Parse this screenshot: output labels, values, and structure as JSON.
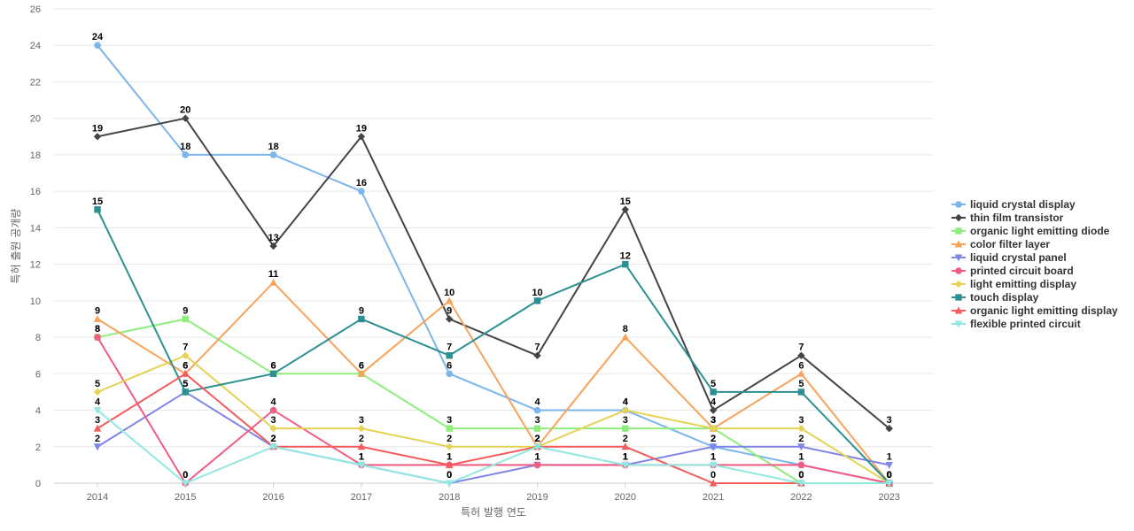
{
  "chart_data": {
    "type": "line",
    "x": [
      "2014",
      "2015",
      "2016",
      "2017",
      "2018",
      "2019",
      "2020",
      "2021",
      "2022",
      "2023"
    ],
    "xlabel": "특허 발행 연도",
    "ylabel": "특허 출원 공개량",
    "ylim": [
      0,
      26
    ],
    "yticks": [
      0,
      2,
      4,
      6,
      8,
      10,
      12,
      14,
      16,
      18,
      20,
      22,
      24,
      26
    ],
    "grid": true,
    "legend_position": "right",
    "data_labels": true,
    "series": [
      {
        "name": "liquid crystal display",
        "color": "#7cb5ec",
        "marker": "circle",
        "values": [
          24,
          18,
          18,
          16,
          6,
          4,
          4,
          2,
          1,
          0
        ]
      },
      {
        "name": "thin film transistor",
        "color": "#434348",
        "marker": "diamond",
        "values": [
          19,
          20,
          13,
          19,
          9,
          7,
          15,
          4,
          7,
          3
        ]
      },
      {
        "name": "organic light emitting diode",
        "color": "#90ed7d",
        "marker": "square",
        "values": [
          8,
          9,
          6,
          6,
          3,
          3,
          3,
          3,
          0,
          0
        ]
      },
      {
        "name": "color filter layer",
        "color": "#f7a35c",
        "marker": "triangle",
        "values": [
          9,
          6,
          11,
          6,
          10,
          2,
          8,
          3,
          6,
          0
        ]
      },
      {
        "name": "liquid crystal panel",
        "color": "#8085e9",
        "marker": "triangle-down",
        "values": [
          2,
          5,
          2,
          1,
          0,
          1,
          1,
          2,
          2,
          1
        ]
      },
      {
        "name": "printed circuit board",
        "color": "#f15c80",
        "marker": "circle",
        "values": [
          8,
          0,
          4,
          1,
          1,
          1,
          1,
          1,
          1,
          0
        ]
      },
      {
        "name": "light emitting display",
        "color": "#e4d354",
        "marker": "diamond",
        "values": [
          5,
          7,
          3,
          3,
          2,
          2,
          4,
          3,
          3,
          0
        ]
      },
      {
        "name": "touch display",
        "color": "#2b908f",
        "marker": "square",
        "values": [
          15,
          5,
          6,
          9,
          7,
          10,
          12,
          5,
          5,
          0
        ]
      },
      {
        "name": "organic light emitting display",
        "color": "#f45b5b",
        "marker": "triangle",
        "values": [
          3,
          6,
          2,
          2,
          1,
          2,
          2,
          0,
          0,
          0
        ]
      },
      {
        "name": "flexible printed circuit",
        "color": "#91e8e1",
        "marker": "triangle-down",
        "values": [
          4,
          0,
          2,
          1,
          0,
          2,
          1,
          1,
          0,
          0
        ]
      }
    ]
  }
}
